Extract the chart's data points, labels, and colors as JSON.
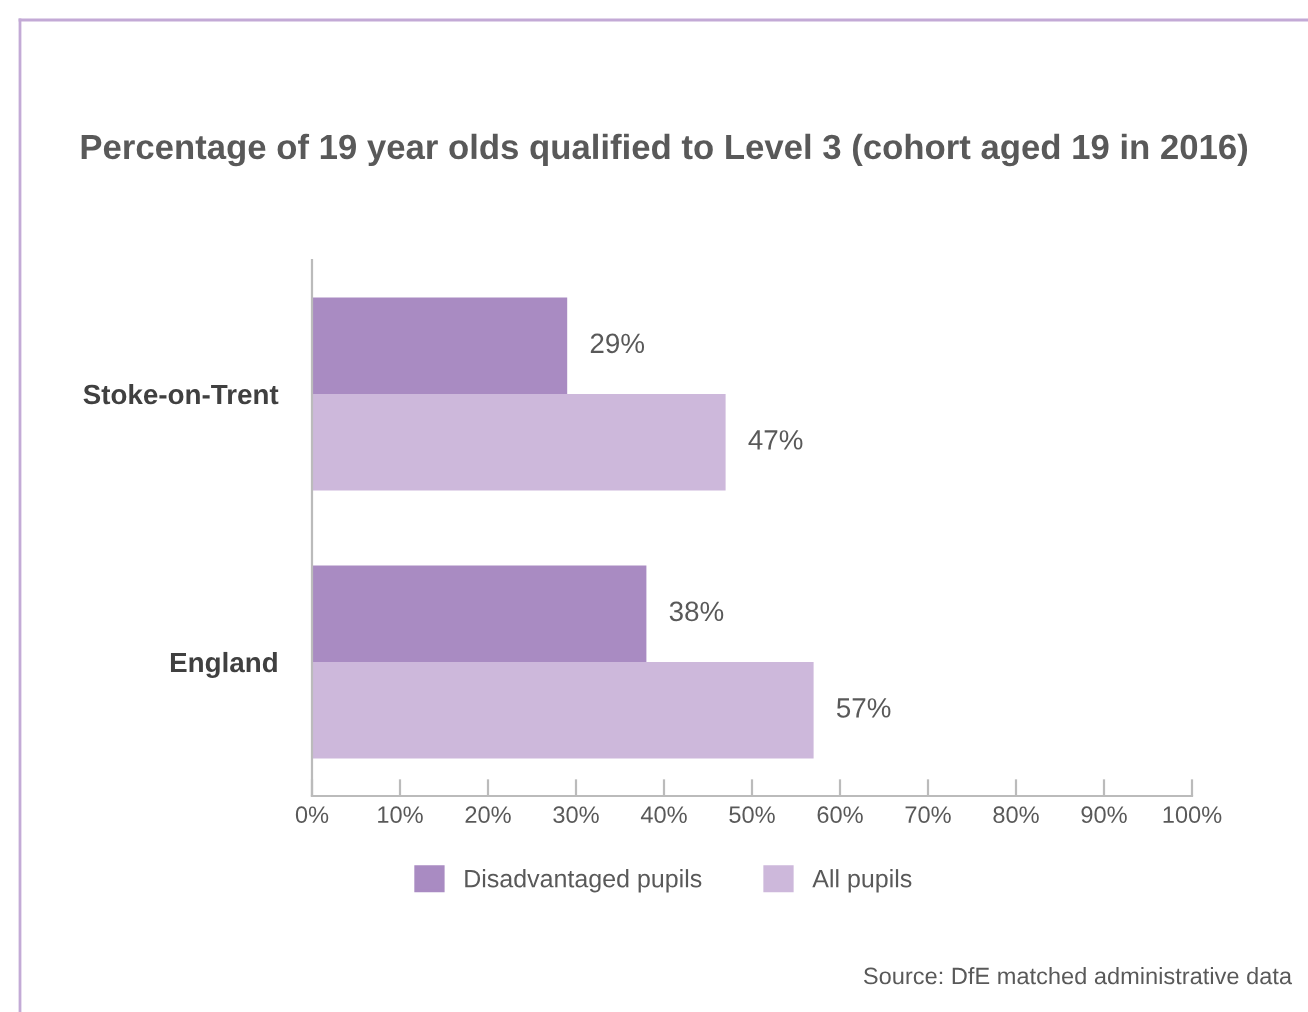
{
  "chart_data": {
    "type": "bar",
    "orientation": "horizontal",
    "title": "Percentage of 19 year olds qualified to Level 3 (cohort aged 19 in 2016)",
    "categories": [
      "Stoke-on-Trent",
      "England"
    ],
    "series": [
      {
        "name": "Disadvantaged pupils",
        "color": "#a98bc2",
        "values": [
          29,
          38
        ],
        "value_labels": [
          "29%",
          "38%"
        ]
      },
      {
        "name": "All pupils",
        "color": "#cdb8db",
        "values": [
          47,
          57
        ],
        "value_labels": [
          "47%",
          "57%"
        ]
      }
    ],
    "xlim": [
      0,
      100
    ],
    "xticks": [
      {
        "value": 0,
        "label": "0%"
      },
      {
        "value": 10,
        "label": "10%"
      },
      {
        "value": 20,
        "label": "20%"
      },
      {
        "value": 30,
        "label": "30%"
      },
      {
        "value": 40,
        "label": "40%"
      },
      {
        "value": 50,
        "label": "50%"
      },
      {
        "value": 60,
        "label": "60%"
      },
      {
        "value": 70,
        "label": "70%"
      },
      {
        "value": 80,
        "label": "80%"
      },
      {
        "value": 90,
        "label": "90%"
      },
      {
        "value": 100,
        "label": "100%"
      }
    ],
    "grid": false,
    "legend": "bottom",
    "annotations": [
      "Source: DfE matched administrative data"
    ]
  }
}
